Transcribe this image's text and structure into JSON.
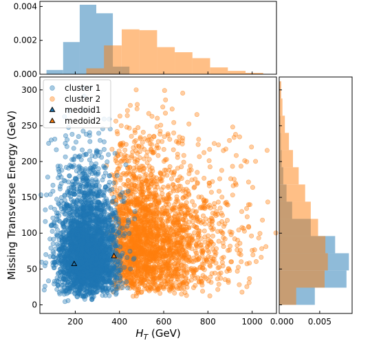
{
  "colors": {
    "cluster1": "#1f77b4",
    "cluster2": "#ff7f0e"
  },
  "chart_data": [
    {
      "id": "scatter",
      "type": "scatter",
      "xlabel_main": "H",
      "xlabel_sub": "T",
      "xlabel_unit": " (GeV)",
      "ylabel": "Missing Transverse Energy (GeV)",
      "xlim": [
        40,
        1110
      ],
      "ylim": [
        -12,
        318
      ],
      "xticks": [
        200,
        400,
        600,
        800,
        1000
      ],
      "yticks": [
        0,
        50,
        100,
        150,
        200,
        250,
        300
      ],
      "legend_position": "top-left",
      "series": [
        {
          "name": "cluster 1",
          "marker": "circle",
          "color": "#1f77b4",
          "approx_points": 3200,
          "center": [
            240,
            70
          ],
          "x_range": [
            70,
            470
          ],
          "y_range": [
            5,
            300
          ]
        },
        {
          "name": "cluster 2",
          "marker": "circle",
          "color": "#ff7f0e",
          "approx_points": 2600,
          "center": [
            520,
            90
          ],
          "x_range": [
            330,
            1060
          ],
          "y_range": [
            5,
            300
          ]
        }
      ],
      "medoids": [
        {
          "name": "medoid1",
          "marker": "triangle",
          "color": "#1f77b4",
          "x": 195,
          "y": 57
        },
        {
          "name": "medoid2",
          "marker": "triangle",
          "color": "#ff7f0e",
          "x": 375,
          "y": 68
        }
      ]
    },
    {
      "id": "top-histogram",
      "type": "bar",
      "orientation": "vertical",
      "xlim": [
        40,
        1110
      ],
      "ylim": [
        0,
        0.0043
      ],
      "yticks": [
        0.0,
        0.002,
        0.004
      ],
      "ytick_labels": [
        "0.000",
        "0.002",
        "0.004"
      ],
      "series": [
        {
          "name": "cluster 1",
          "bin_edges": [
            70,
            145,
            220,
            295,
            370,
            445
          ],
          "values": [
            0.00025,
            0.0019,
            0.0041,
            0.0036,
            0.00045
          ]
        },
        {
          "name": "cluster 2",
          "bin_edges": [
            250,
            330,
            410,
            490,
            570,
            650,
            730,
            810,
            890,
            970,
            1050
          ],
          "values": [
            0.00035,
            0.0017,
            0.00265,
            0.0026,
            0.0016,
            0.0013,
            0.00095,
            0.0004,
            0.0002,
            8e-05
          ]
        }
      ]
    },
    {
      "id": "right-histogram",
      "type": "bar",
      "orientation": "horizontal",
      "xlim": [
        0,
        0.009
      ],
      "xticks": [
        0.0,
        0.005
      ],
      "xtick_labels": [
        "0.000",
        "0.005"
      ],
      "ylim": [
        -12,
        318
      ],
      "series": [
        {
          "name": "cluster 1",
          "bin_edges": [
            0,
            24,
            48,
            72,
            96,
            120,
            144,
            168,
            192,
            216,
            240,
            264,
            288,
            312
          ],
          "values": [
            0.0044,
            0.0083,
            0.0086,
            0.0069,
            0.0039,
            0.0016,
            0.0009,
            0.0005,
            0.0003,
            0.0002,
            0.00015,
            0.0001,
            0.0001
          ]
        },
        {
          "name": "cluster 2",
          "bin_edges": [
            0,
            24,
            48,
            72,
            96,
            120,
            144,
            168,
            192,
            216,
            240,
            264,
            288,
            312
          ],
          "values": [
            0.0021,
            0.0056,
            0.006,
            0.0057,
            0.0048,
            0.0039,
            0.0032,
            0.0024,
            0.0017,
            0.0012,
            0.0007,
            0.0004,
            0.00025
          ]
        }
      ]
    }
  ]
}
